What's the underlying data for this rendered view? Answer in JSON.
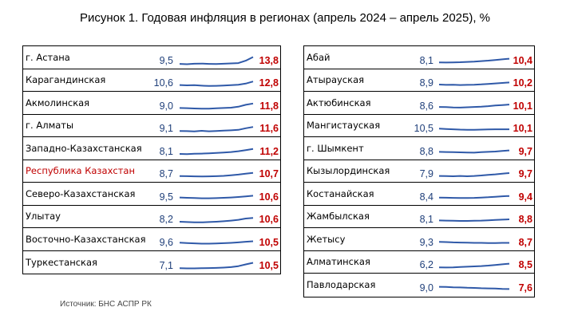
{
  "title": "Рисунок 1. Годовая инфляция в регионах (апрель 2024 – апрель 2025), %",
  "source": "Источник: БНС АСПР РК",
  "colors": {
    "spark": "#2f59a8",
    "start": "#1f3f7a",
    "end": "#c00000",
    "highlight": "#c00000"
  },
  "chart_data": {
    "type": "table",
    "columns": [
      "region",
      "april_2024",
      "april_2025"
    ],
    "left_table": [
      {
        "name": "г. Астана",
        "start": "9,5",
        "end": "13,8",
        "trend": [
          9.5,
          9.3,
          9.6,
          9.7,
          9.5,
          9.4,
          9.6,
          9.8,
          10.0,
          11.5,
          13.8
        ]
      },
      {
        "name": "Карагандинская",
        "start": "10,6",
        "end": "12,8",
        "trend": [
          10.6,
          10.4,
          10.5,
          10.2,
          10.0,
          10.1,
          10.3,
          10.5,
          10.8,
          11.5,
          12.8
        ]
      },
      {
        "name": "Акмолинская",
        "start": "9,0",
        "end": "11,8",
        "trend": [
          9.0,
          8.9,
          8.7,
          8.6,
          8.6,
          8.8,
          9.0,
          9.2,
          9.8,
          11.0,
          11.8
        ]
      },
      {
        "name": "г. Алматы",
        "start": "9,1",
        "end": "11,6",
        "trend": [
          9.1,
          9.0,
          8.8,
          9.2,
          8.9,
          9.1,
          9.3,
          9.5,
          9.8,
          10.8,
          11.6
        ]
      },
      {
        "name": "Западно-Казахстанская",
        "start": "8,1",
        "end": "11,2",
        "trend": [
          8.1,
          8.0,
          8.2,
          8.3,
          8.5,
          8.7,
          9.0,
          9.3,
          9.8,
          10.5,
          11.2
        ]
      },
      {
        "name": "Республика Казахстан",
        "start": "8,7",
        "end": "10,7",
        "highlight": true,
        "trend": [
          8.7,
          8.6,
          8.5,
          8.4,
          8.5,
          8.6,
          8.8,
          9.2,
          9.6,
          10.2,
          10.7
        ]
      },
      {
        "name": "Северо-Казахстанская",
        "start": "9,5",
        "end": "10,6",
        "trend": [
          9.5,
          9.3,
          9.2,
          9.0,
          9.0,
          9.1,
          9.3,
          9.5,
          9.8,
          10.2,
          10.6
        ]
      },
      {
        "name": "Улытау",
        "start": "8,2",
        "end": "10,6",
        "trend": [
          8.2,
          8.0,
          7.8,
          7.8,
          8.0,
          8.2,
          8.5,
          8.9,
          9.4,
          10.2,
          10.6
        ]
      },
      {
        "name": "Восточно-Казахстанская",
        "start": "9,6",
        "end": "10,5",
        "trend": [
          9.6,
          9.4,
          9.2,
          9.0,
          9.0,
          9.1,
          9.3,
          9.5,
          9.8,
          10.2,
          10.5
        ]
      },
      {
        "name": "Туркестанская",
        "start": "7,1",
        "end": "10,5",
        "trend": [
          7.1,
          7.0,
          7.0,
          7.1,
          7.2,
          7.3,
          7.5,
          7.8,
          8.4,
          9.5,
          10.5
        ]
      }
    ],
    "right_table": [
      {
        "name": "Абай",
        "start": "8,1",
        "end": "10,4",
        "trend": [
          8.1,
          8.0,
          8.1,
          8.2,
          8.4,
          8.6,
          8.9,
          9.2,
          9.6,
          10.0,
          10.4
        ]
      },
      {
        "name": "Атырауская",
        "start": "8,9",
        "end": "10,2",
        "trend": [
          8.9,
          8.7,
          8.8,
          8.6,
          8.7,
          8.8,
          9.0,
          9.3,
          9.6,
          9.9,
          10.2
        ]
      },
      {
        "name": "Актюбинская",
        "start": "8,6",
        "end": "10,1",
        "trend": [
          8.6,
          8.5,
          8.3,
          8.2,
          8.4,
          8.6,
          8.8,
          9.1,
          9.5,
          9.8,
          10.1
        ]
      },
      {
        "name": "Мангистауская",
        "start": "10,5",
        "end": "10,1",
        "trend": [
          10.5,
          10.3,
          10.1,
          9.9,
          9.8,
          9.8,
          9.9,
          10.0,
          10.1,
          10.1,
          10.1
        ]
      },
      {
        "name": "г. Шымкент",
        "start": "8,8",
        "end": "9,7",
        "trend": [
          8.8,
          8.7,
          8.6,
          8.5,
          8.4,
          8.3,
          8.6,
          8.8,
          9.0,
          9.4,
          9.7
        ]
      },
      {
        "name": "Кызылординская",
        "start": "7,9",
        "end": "9,7",
        "trend": [
          7.9,
          7.8,
          7.7,
          7.9,
          7.7,
          7.9,
          8.2,
          8.6,
          8.9,
          9.3,
          9.7
        ]
      },
      {
        "name": "Костанайская",
        "start": "8,4",
        "end": "9,4",
        "trend": [
          8.4,
          8.3,
          8.2,
          8.1,
          8.1,
          8.2,
          8.4,
          8.6,
          8.9,
          9.2,
          9.4
        ]
      },
      {
        "name": "Жамбылская",
        "start": "8,1",
        "end": "8,8",
        "trend": [
          8.1,
          8.0,
          7.9,
          7.8,
          7.8,
          7.9,
          8.0,
          8.2,
          8.4,
          8.6,
          8.8
        ]
      },
      {
        "name": "Жетысу",
        "start": "9,3",
        "end": "8,7",
        "trend": [
          9.3,
          9.2,
          9.0,
          8.9,
          8.8,
          8.7,
          8.7,
          8.6,
          8.6,
          8.7,
          8.7
        ]
      },
      {
        "name": "Алматинская",
        "start": "6,2",
        "end": "8,5",
        "trend": [
          6.2,
          6.1,
          6.2,
          6.4,
          6.6,
          6.8,
          7.0,
          7.3,
          7.7,
          8.1,
          8.5
        ]
      },
      {
        "name": "Павлодарская",
        "start": "9,0",
        "end": "7,6",
        "trend": [
          9.0,
          8.9,
          8.7,
          8.6,
          8.4,
          8.3,
          8.1,
          8.0,
          7.9,
          7.7,
          7.6
        ]
      }
    ]
  }
}
